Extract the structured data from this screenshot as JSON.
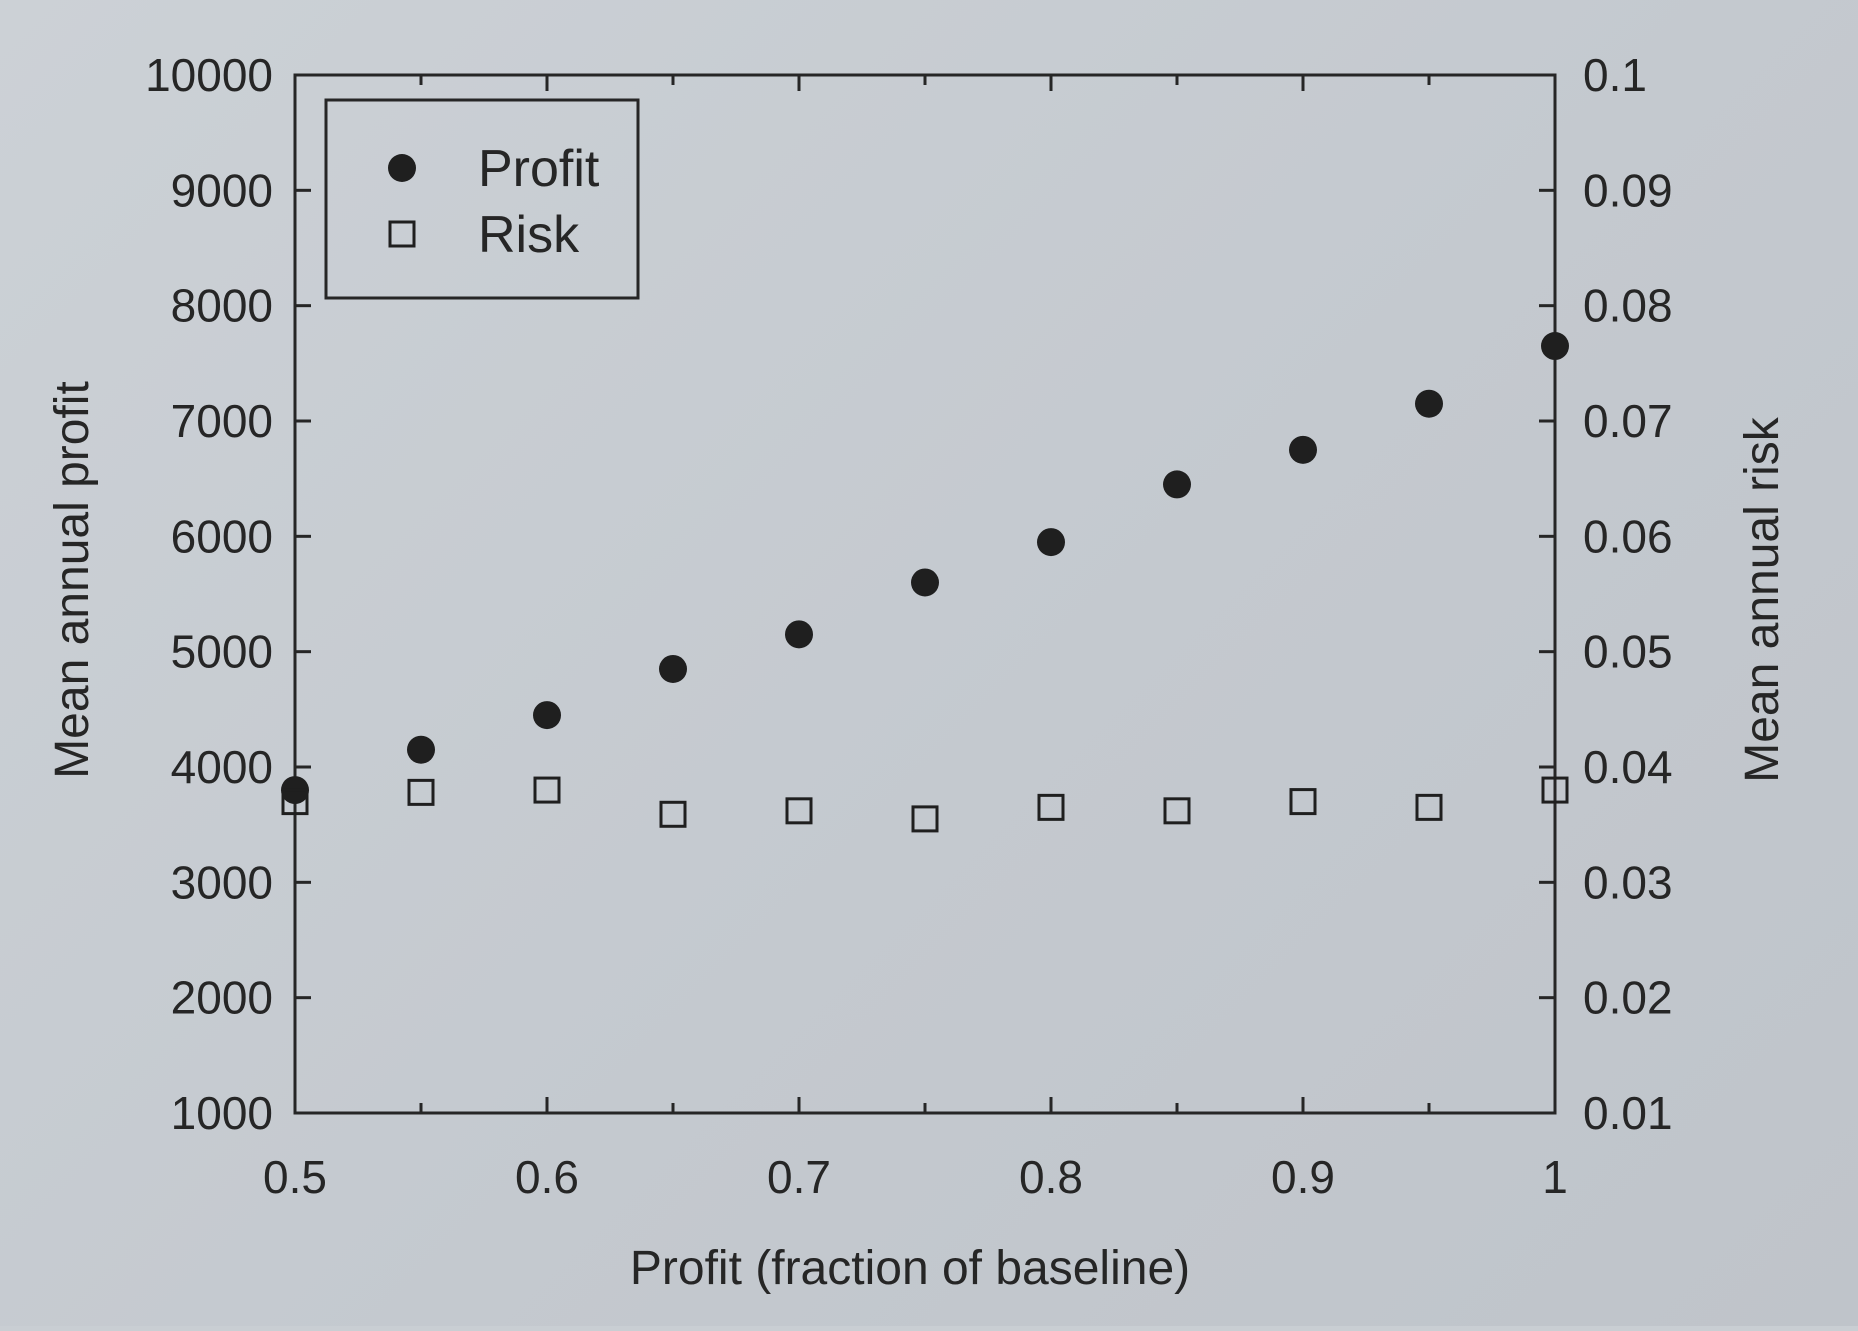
{
  "chart_data": {
    "type": "scatter",
    "title": "",
    "xlabel": "Profit (fraction of baseline)",
    "ylabel": "Mean annual profit",
    "y2label": "Mean annual risk",
    "xlim": [
      0.5,
      1.0
    ],
    "ylim": [
      1000,
      10000
    ],
    "y2lim": [
      0.01,
      0.1
    ],
    "x_ticks": [
      "0.5",
      "0.6",
      "0.7",
      "0.8",
      "0.9",
      "1"
    ],
    "y_ticks": [
      "1000",
      "2000",
      "3000",
      "4000",
      "5000",
      "6000",
      "7000",
      "8000",
      "9000",
      "10000"
    ],
    "y2_ticks": [
      "0.01",
      "0.02",
      "0.03",
      "0.04",
      "0.05",
      "0.06",
      "0.07",
      "0.08",
      "0.09",
      "0.1"
    ],
    "grid": false,
    "legend_position": "top-left",
    "series": [
      {
        "name": "Profit",
        "axis": "left",
        "marker": "filled-circle",
        "color": "#1f1f1f",
        "x": [
          0.5,
          0.55,
          0.6,
          0.65,
          0.7,
          0.75,
          0.8,
          0.85,
          0.9,
          0.95,
          1.0
        ],
        "y": [
          3800,
          4150,
          4450,
          4850,
          5150,
          5600,
          5950,
          6450,
          6750,
          7150,
          7650
        ]
      },
      {
        "name": "Risk",
        "axis": "right",
        "marker": "open-square",
        "color": "#1f1f1f",
        "x": [
          0.5,
          0.55,
          0.6,
          0.65,
          0.7,
          0.75,
          0.8,
          0.85,
          0.9,
          0.95,
          1.0
        ],
        "y": [
          0.037,
          0.0378,
          0.038,
          0.0359,
          0.0362,
          0.0355,
          0.0365,
          0.0362,
          0.037,
          0.0365,
          0.038
        ]
      }
    ]
  }
}
